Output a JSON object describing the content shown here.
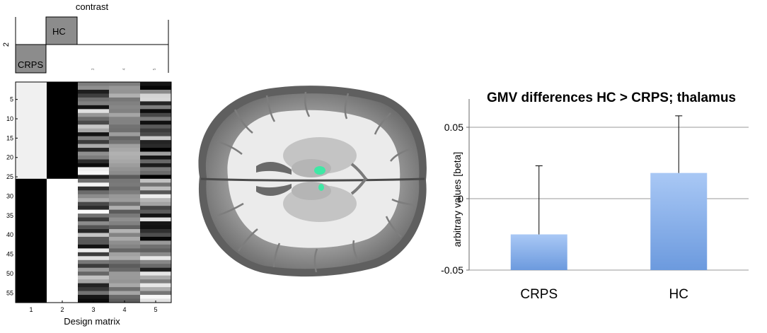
{
  "design_matrix": {
    "contrast_title": "contrast",
    "contrast_y_tick": "2",
    "contrast_labels": [
      "CRPS",
      "HC"
    ],
    "contrast_x_ticks": [
      "3",
      "4",
      "5"
    ],
    "xlabel": "Design matrix",
    "x_ticks": [
      "1",
      "2",
      "3",
      "4",
      "5"
    ],
    "y_ticks": [
      "5",
      "10",
      "15",
      "20",
      "25",
      "30",
      "35",
      "40",
      "45",
      "50",
      "55"
    ],
    "rows": 57,
    "group_split_row": 25
  },
  "brain": {
    "highlight_color": "#3fe8a5"
  },
  "chart_data": {
    "type": "bar",
    "title": "GMV differences HC > CRPS; thalamus",
    "ylabel": "arbitrary values [beta]",
    "categories": [
      "CRPS",
      "HC"
    ],
    "values": [
      -0.025,
      0.018
    ],
    "error_plus": [
      0.048,
      0.04
    ],
    "ylim": [
      -0.05,
      0.05
    ],
    "yticks": [
      -0.05,
      0,
      0.05
    ],
    "ytick_labels": [
      "-0.05",
      "0",
      "0.05"
    ],
    "grid": true,
    "bar_color": "#8fb4ec"
  }
}
